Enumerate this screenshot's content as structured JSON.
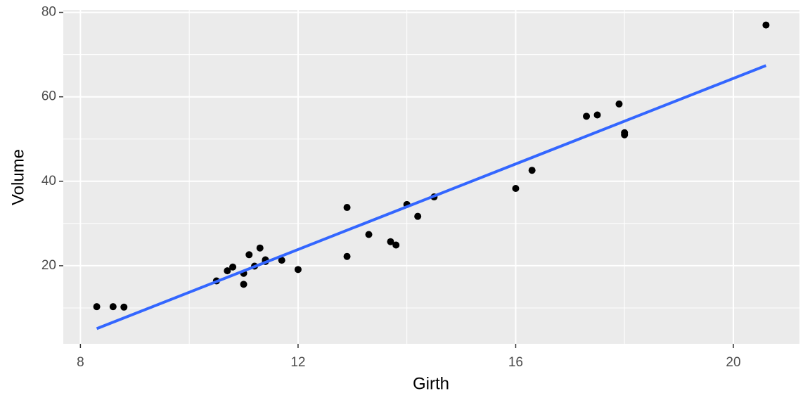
{
  "chart_data": {
    "type": "scatter",
    "x_label": "Girth",
    "y_label": "Volume",
    "x": [
      8.3,
      8.6,
      8.8,
      10.5,
      10.7,
      10.8,
      11.0,
      11.0,
      11.1,
      11.2,
      11.3,
      11.4,
      11.4,
      11.7,
      12.0,
      12.9,
      12.9,
      13.3,
      13.7,
      13.8,
      14.0,
      14.2,
      14.5,
      16.0,
      16.3,
      17.3,
      17.5,
      17.9,
      18.0,
      18.0,
      20.6
    ],
    "values": [
      10.3,
      10.3,
      10.2,
      16.4,
      18.8,
      19.7,
      15.6,
      18.2,
      22.6,
      19.9,
      24.2,
      21.0,
      21.4,
      21.3,
      19.1,
      22.2,
      33.8,
      27.4,
      25.7,
      24.9,
      34.5,
      31.7,
      36.3,
      38.3,
      42.6,
      55.4,
      55.7,
      58.3,
      51.5,
      51.0,
      77.0
    ],
    "color": "#000000",
    "fit_line": {
      "x": [
        8.3,
        20.6
      ],
      "values": [
        5.1,
        67.4
      ],
      "color": "#3366FF"
    },
    "xlim": [
      7.685,
      21.215
    ],
    "xticks": [
      8,
      12,
      16,
      20
    ],
    "ylim": [
      1.505,
      80.595
    ],
    "yticks": [
      20,
      40,
      60,
      80
    ],
    "grid": true,
    "panel_color": "#EBEBEB"
  }
}
